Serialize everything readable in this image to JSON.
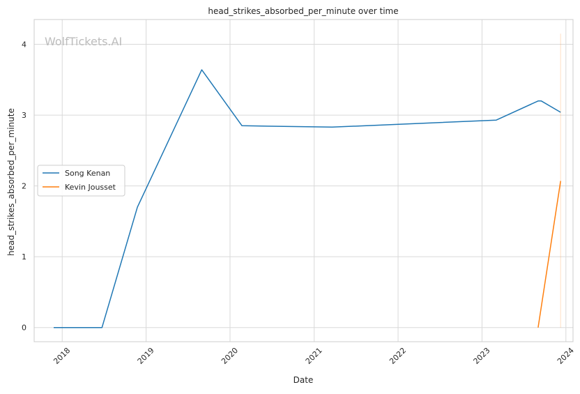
{
  "watermark": "WolfTickets.AI",
  "chart_data": {
    "type": "line",
    "title": "head_strikes_absorbed_per_minute over time",
    "xlabel": "Date",
    "ylabel": "head_strikes_absorbed_per_minute",
    "x_ticks": [
      "2018",
      "2019",
      "2020",
      "2021",
      "2022",
      "2023",
      "2024"
    ],
    "y_ticks": [
      0,
      1,
      2,
      3,
      4
    ],
    "xlim": [
      "2017-09-01",
      "2024-02-01"
    ],
    "ylim": [
      -0.2,
      4.35
    ],
    "grid": true,
    "legend_position": "center-left",
    "series": [
      {
        "name": "Song Kenan",
        "color": "#1f77b4",
        "points": [
          [
            "2017-11-25",
            0.0
          ],
          [
            "2018-06-23",
            0.0
          ],
          [
            "2018-11-24",
            1.7
          ],
          [
            "2019-08-31",
            3.64
          ],
          [
            "2020-02-22",
            2.85
          ],
          [
            "2021-03-20",
            2.83
          ],
          [
            "2023-03-04",
            2.93
          ],
          [
            "2023-09-02",
            3.2
          ],
          [
            "2023-09-16",
            3.2
          ],
          [
            "2023-12-09",
            3.04
          ]
        ]
      },
      {
        "name": "Kevin Jousset",
        "color": "#ff7f0e",
        "points": [
          [
            "2023-09-02",
            0.0
          ],
          [
            "2023-12-09",
            2.07
          ]
        ]
      }
    ],
    "marker_line": {
      "date": "2023-12-09",
      "from": 0.0,
      "to": 4.15,
      "color": "#ff7f0e"
    }
  }
}
